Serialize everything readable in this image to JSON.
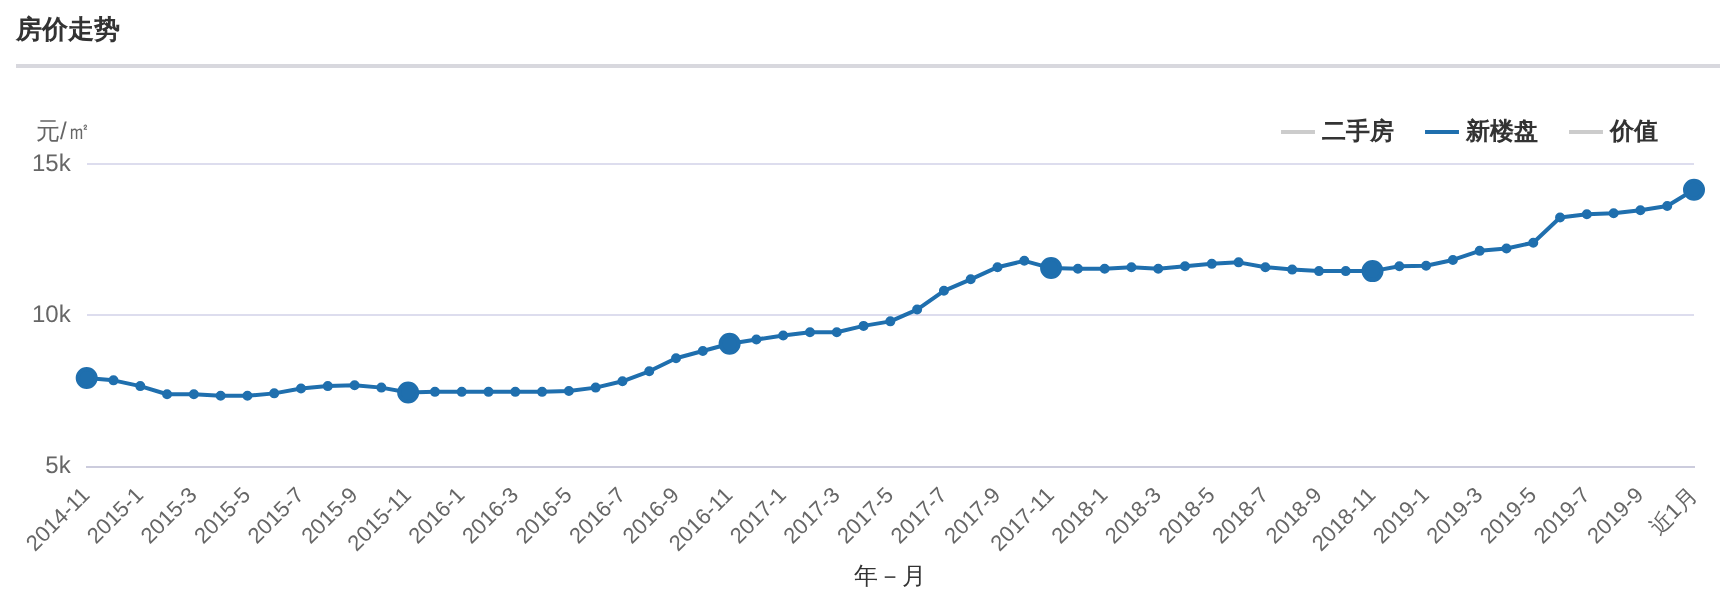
{
  "chart_data": {
    "type": "line",
    "title": "房价走势",
    "xlabel": "年－月",
    "ylabel": "元/㎡",
    "categories": [
      "2014-11",
      null,
      "2015-1",
      null,
      "2015-3",
      null,
      "2015-5",
      null,
      "2015-7",
      null,
      "2015-9",
      null,
      "2015-11",
      null,
      "2016-1",
      null,
      "2016-3",
      null,
      "2016-5",
      null,
      "2016-7",
      null,
      "2016-9",
      null,
      "2016-11",
      null,
      "2017-1",
      null,
      "2017-3",
      null,
      "2017-5",
      null,
      "2017-7",
      null,
      "2017-9",
      null,
      "2017-11",
      null,
      "2018-1",
      null,
      "2018-3",
      null,
      "2018-5",
      null,
      "2018-7",
      null,
      "2018-9",
      null,
      "2018-11",
      null,
      "2019-1",
      null,
      "2019-3",
      null,
      "2019-5",
      null,
      "2019-7",
      null,
      "2019-9",
      null,
      "近1月"
    ],
    "series": [
      {
        "name": "二手房",
        "color": "#cccccc",
        "values": [
          null,
          null,
          null,
          null,
          null,
          null,
          null,
          null,
          null,
          null,
          null,
          null,
          null,
          null,
          null,
          null,
          null,
          null,
          null,
          null,
          null,
          null,
          null,
          null,
          null,
          null,
          null,
          null,
          null,
          null,
          null,
          null,
          null,
          null,
          null,
          null,
          null,
          null,
          null,
          null,
          null,
          null,
          null,
          null,
          null,
          null,
          null,
          null,
          null,
          null,
          null,
          null,
          null,
          null,
          null,
          null,
          null,
          null,
          null,
          null,
          null
        ]
      },
      {
        "name": "新楼盘",
        "color": "#1f6fae",
        "values": [
          7930,
          7850,
          7660,
          7390,
          7390,
          7340,
          7340,
          7420,
          7580,
          7660,
          7690,
          7610,
          7450,
          7470,
          7470,
          7470,
          7470,
          7470,
          7500,
          7610,
          7820,
          8150,
          8580,
          8820,
          9060,
          9200,
          9330,
          9440,
          9440,
          9650,
          9800,
          10190,
          10810,
          11190,
          11590,
          11800,
          11560,
          11540,
          11540,
          11590,
          11540,
          11620,
          11700,
          11750,
          11590,
          11510,
          11460,
          11460,
          11460,
          11620,
          11640,
          11830,
          12130,
          12210,
          12400,
          13230,
          13340,
          13370,
          13470,
          13610,
          14150
        ]
      },
      {
        "name": "价值",
        "color": "#cccccc",
        "values": [
          null,
          null,
          null,
          null,
          null,
          null,
          null,
          null,
          null,
          null,
          null,
          null,
          null,
          null,
          null,
          null,
          null,
          null,
          null,
          null,
          null,
          null,
          null,
          null,
          null,
          null,
          null,
          null,
          null,
          null,
          null,
          null,
          null,
          null,
          null,
          null,
          null,
          null,
          null,
          null,
          null,
          null,
          null,
          null,
          null,
          null,
          null,
          null,
          null,
          null,
          null,
          null,
          null,
          null,
          null,
          null,
          null,
          null,
          null,
          null,
          null
        ]
      }
    ],
    "ylim": [
      5000,
      15000
    ],
    "yticks": [
      {
        "value": 5000,
        "label": "5k"
      },
      {
        "value": 10000,
        "label": "10k"
      },
      {
        "value": 15000,
        "label": "15k"
      }
    ],
    "grid": "y",
    "legend": "top right",
    "marker": "circle",
    "line_style": "solid"
  }
}
